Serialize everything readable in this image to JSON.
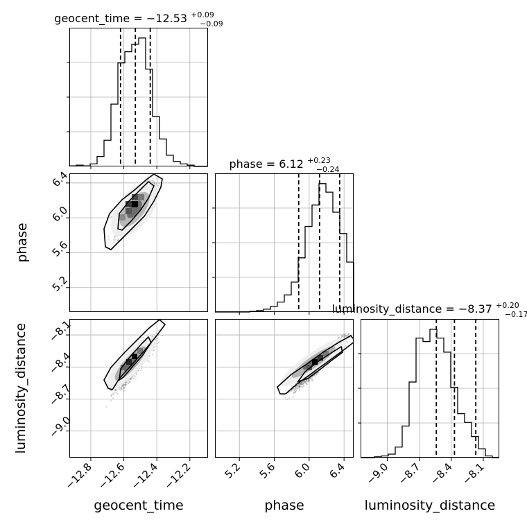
{
  "colors": {
    "hist": "#000000",
    "grid": "#b0b0b0",
    "points": "#6a6a6a",
    "quantile": "#000000"
  },
  "chart_data": {
    "type": "corner",
    "parameters": [
      {
        "name": "geocent_time",
        "title_prefix": "geocent_time = ",
        "title_median": "−12.53",
        "title_plus": "+0.09",
        "title_minus": "−0.09",
        "median": -12.53,
        "lower": -12.62,
        "upper": -12.44,
        "range": [
          -12.93,
          -12.09
        ],
        "ticks": [
          -12.8,
          -12.6,
          -12.4,
          -12.2
        ],
        "tick_labels": [
          "−12.8",
          "−12.6",
          "−12.4",
          "−12.2"
        ],
        "hist_bins": [
          0.5,
          1,
          0.5,
          2,
          8,
          21,
          50,
          83,
          92,
          98,
          103,
          78,
          40,
          22,
          9,
          4,
          2,
          1,
          0,
          0
        ]
      },
      {
        "name": "phase",
        "title_prefix": "phase = ",
        "title_median": "6.12",
        "title_plus": "+0.23",
        "title_minus": "−0.24",
        "median": 6.12,
        "lower": 5.88,
        "upper": 6.35,
        "range": [
          4.92,
          6.51
        ],
        "ticks": [
          5.2,
          5.6,
          6.0,
          6.4
        ],
        "tick_labels": [
          "5.2",
          "5.6",
          "6.0",
          "6.4"
        ],
        "hist_bins": [
          0,
          0,
          0,
          0,
          0,
          0.5,
          1,
          2,
          4,
          7,
          12,
          21,
          38,
          60,
          75,
          90,
          84,
          70,
          55,
          35
        ]
      },
      {
        "name": "luminosity_distance",
        "title_prefix": "luminosity_distance = ",
        "title_median": "−8.37",
        "title_plus": "+0.20",
        "title_minus": "−0.17",
        "median": -8.37,
        "lower": -8.54,
        "upper": -8.17,
        "range": [
          -9.25,
          -7.95
        ],
        "ticks": [
          -9.0,
          -8.7,
          -8.4,
          -8.1
        ],
        "tick_labels": [
          "−9.0",
          "−8.7",
          "−8.4",
          "−8.1"
        ],
        "hist_bins": [
          0,
          0,
          0.5,
          1,
          2,
          6,
          18,
          43,
          68,
          66,
          73,
          68,
          60,
          40,
          25,
          20,
          12,
          5,
          1,
          0
        ]
      }
    ],
    "grid": true,
    "quantiles": [
      0.16,
      0.5,
      0.84
    ]
  }
}
